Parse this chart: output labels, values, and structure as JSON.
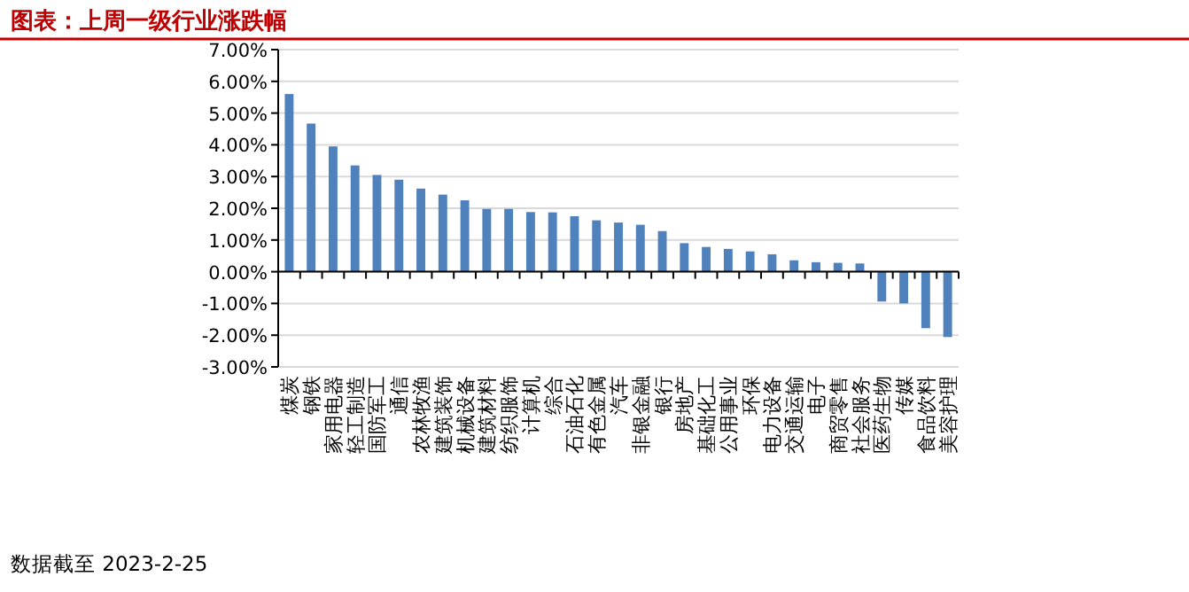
{
  "chart_data": {
    "type": "bar",
    "title": "图表：上周一级行业涨跌幅",
    "categories": [
      "煤炭",
      "钢铁",
      "家用电器",
      "轻工制造",
      "国防军工",
      "通信",
      "农林牧渔",
      "建筑装饰",
      "机械设备",
      "建筑材料",
      "纺织服饰",
      "计算机",
      "综合",
      "石油石化",
      "有色金属",
      "汽车",
      "非银金融",
      "银行",
      "房地产",
      "基础化工",
      "公用事业",
      "环保",
      "电力设备",
      "交通运输",
      "电子",
      "商贸零售",
      "社会服务",
      "医药生物",
      "传媒",
      "食品饮料",
      "美容护理"
    ],
    "values": [
      5.6,
      4.67,
      3.95,
      3.35,
      3.05,
      2.9,
      2.62,
      2.43,
      2.25,
      1.98,
      1.98,
      1.88,
      1.87,
      1.75,
      1.62,
      1.55,
      1.48,
      1.28,
      0.9,
      0.78,
      0.72,
      0.64,
      0.55,
      0.36,
      0.3,
      0.28,
      0.26,
      -0.94,
      -1.0,
      -1.78,
      -2.06
    ],
    "color": "#4f81bd",
    "ylim": [
      -3,
      7
    ],
    "yticks": [
      {
        "value": 7,
        "label": "7.00%"
      },
      {
        "value": 6,
        "label": "6.00%"
      },
      {
        "value": 5,
        "label": "5.00%"
      },
      {
        "value": 4,
        "label": "4.00%"
      },
      {
        "value": 3,
        "label": "3.00%"
      },
      {
        "value": 2,
        "label": "2.00%"
      },
      {
        "value": 1,
        "label": "1.00%"
      },
      {
        "value": 0,
        "label": "0.00%"
      },
      {
        "value": -1,
        "label": "-1.00%"
      },
      {
        "value": -2,
        "label": "-2.00%"
      },
      {
        "value": -3,
        "label": "-3.00%"
      }
    ],
    "grid": "y",
    "annotations": [
      "数据截至 2023-2-25"
    ]
  }
}
